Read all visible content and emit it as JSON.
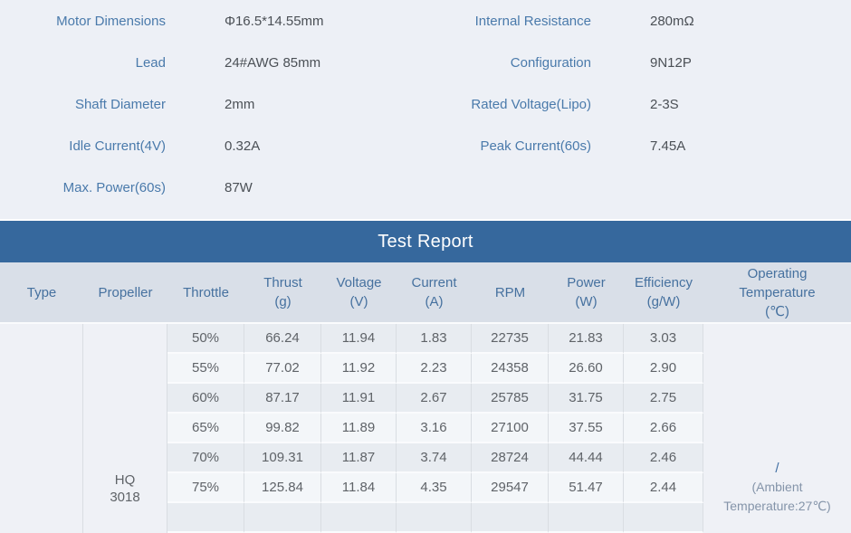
{
  "specs": {
    "left": [
      {
        "label": "Motor Dimensions",
        "value": "Φ16.5*14.55mm"
      },
      {
        "label": "Lead",
        "value": "24#AWG 85mm"
      },
      {
        "label": "Shaft Diameter",
        "value": "2mm"
      },
      {
        "label": "Idle Current(4V)",
        "value": "0.32A"
      },
      {
        "label": "Max. Power(60s)",
        "value": "87W"
      }
    ],
    "right": [
      {
        "label": "Internal Resistance",
        "value": "280mΩ"
      },
      {
        "label": "Configuration",
        "value": "9N12P"
      },
      {
        "label": "Rated Voltage(Lipo)",
        "value": "2-3S"
      },
      {
        "label": "Peak Current(60s)",
        "value": "7.45A"
      }
    ]
  },
  "test_report": {
    "title": "Test Report",
    "columns": [
      {
        "key": "type",
        "lines": [
          "Type"
        ]
      },
      {
        "key": "propeller",
        "lines": [
          "Propeller"
        ]
      },
      {
        "key": "throttle",
        "lines": [
          "Throttle"
        ]
      },
      {
        "key": "thrust",
        "lines": [
          "Thrust",
          "(g)"
        ]
      },
      {
        "key": "voltage",
        "lines": [
          "Voltage",
          "(V)"
        ]
      },
      {
        "key": "current",
        "lines": [
          "Current",
          "(A)"
        ]
      },
      {
        "key": "rpm",
        "lines": [
          "RPM"
        ]
      },
      {
        "key": "power",
        "lines": [
          "Power",
          "(W)"
        ]
      },
      {
        "key": "efficiency",
        "lines": [
          "Efficiency",
          "(g/W)"
        ]
      },
      {
        "key": "operating_temperature",
        "lines": [
          "Operating",
          "Temperature",
          "(℃)"
        ]
      }
    ],
    "type_value": "",
    "propeller": "HQ 3018",
    "rows": [
      {
        "throttle": "50%",
        "thrust": "66.24",
        "voltage": "11.94",
        "current": "1.83",
        "rpm": "22735",
        "power": "21.83",
        "efficiency": "3.03"
      },
      {
        "throttle": "55%",
        "thrust": "77.02",
        "voltage": "11.92",
        "current": "2.23",
        "rpm": "24358",
        "power": "26.60",
        "efficiency": "2.90"
      },
      {
        "throttle": "60%",
        "thrust": "87.17",
        "voltage": "11.91",
        "current": "2.67",
        "rpm": "25785",
        "power": "31.75",
        "efficiency": "2.75"
      },
      {
        "throttle": "65%",
        "thrust": "99.82",
        "voltage": "11.89",
        "current": "3.16",
        "rpm": "27100",
        "power": "37.55",
        "efficiency": "2.66"
      },
      {
        "throttle": "70%",
        "thrust": "109.31",
        "voltage": "11.87",
        "current": "3.74",
        "rpm": "28724",
        "power": "44.44",
        "efficiency": "2.46"
      },
      {
        "throttle": "75%",
        "thrust": "125.84",
        "voltage": "11.84",
        "current": "4.35",
        "rpm": "29547",
        "power": "51.47",
        "efficiency": "2.44"
      }
    ],
    "operating_temperature": {
      "value": "/",
      "note": "(Ambient Temperature:27℃)"
    }
  },
  "colors": {
    "page_bg": "#edf0f6",
    "banner_bg": "#36689d",
    "header_bg": "#d9dfe8",
    "header_text": "#46719f",
    "row_dark": "#e8ecf1",
    "row_light": "#f3f6f9",
    "merged_bg": "#eff1f6",
    "label_blue": "#4a7aab",
    "cell_text": "#5f6368"
  }
}
